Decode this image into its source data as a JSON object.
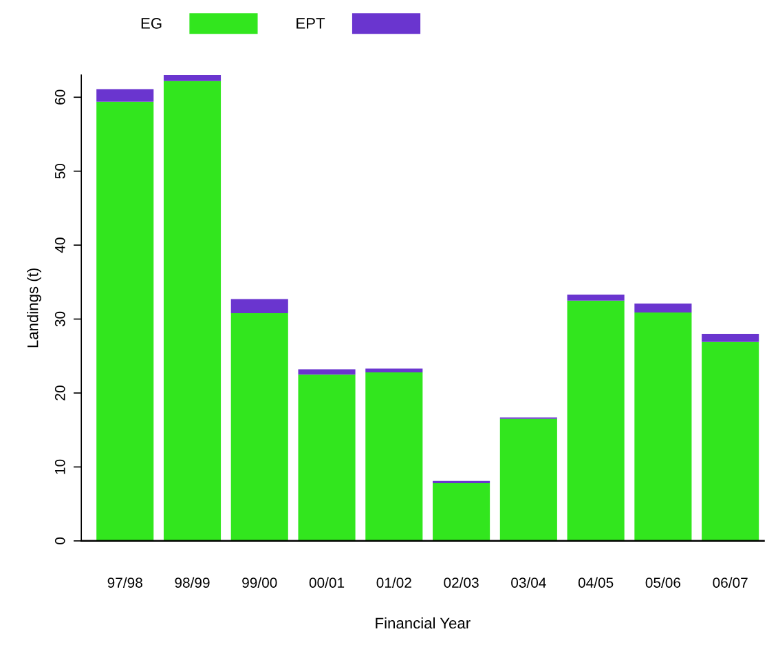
{
  "chart_data": {
    "type": "bar",
    "xlabel": "Financial Year",
    "ylabel": "Landings (t)",
    "categories": [
      "97/98",
      "98/99",
      "99/00",
      "00/01",
      "01/02",
      "02/03",
      "03/04",
      "04/05",
      "05/06",
      "06/07"
    ],
    "stacked": true,
    "series": [
      {
        "name": "EG",
        "color": "#32e61e",
        "values": [
          59.4,
          62.2,
          30.8,
          22.5,
          22.8,
          7.8,
          16.5,
          32.5,
          30.9,
          26.9
        ]
      },
      {
        "name": "EPT",
        "color": "#6a35cf",
        "values": [
          1.7,
          0.8,
          1.9,
          0.7,
          0.5,
          0.3,
          0.2,
          0.8,
          1.2,
          1.1
        ]
      }
    ],
    "ylim": [
      0,
      63
    ],
    "yticks": [
      0,
      10,
      20,
      30,
      40,
      50,
      60
    ],
    "grid": false,
    "legend": "top left"
  }
}
